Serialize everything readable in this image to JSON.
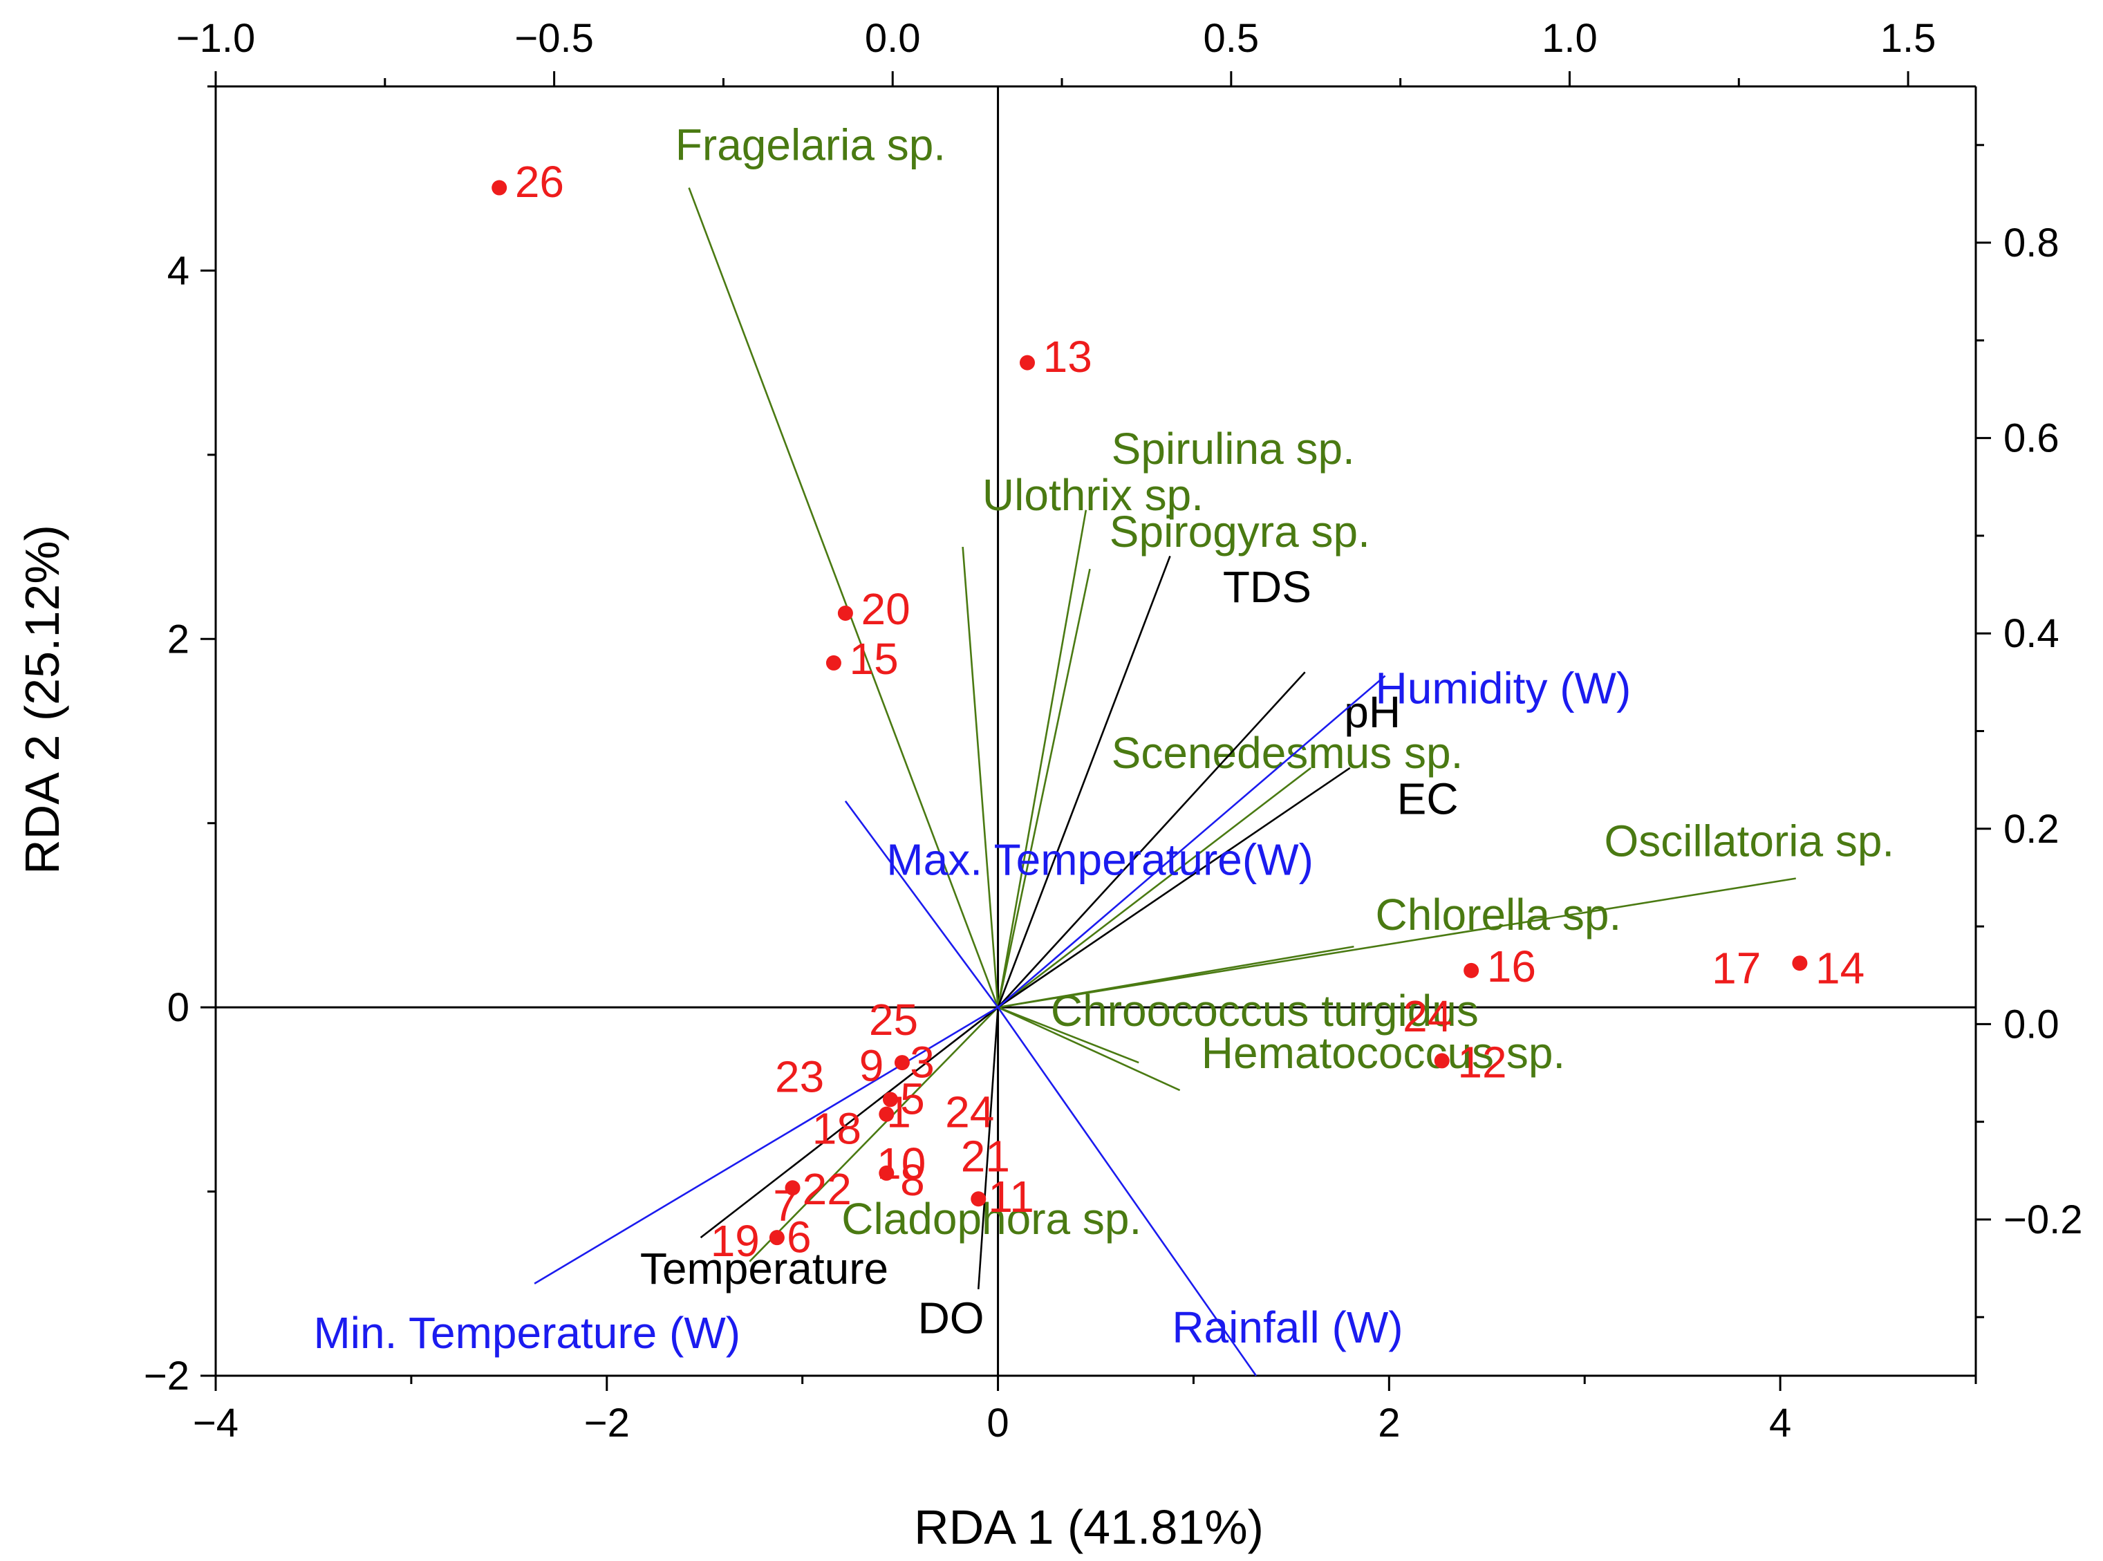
{
  "chart_data": {
    "type": "scatter",
    "subtype": "rda-triplot",
    "xlabel": "RDA 1 (41.81%)",
    "ylabel": "RDA 2 (25.12%)",
    "xlim": [
      -4,
      5
    ],
    "ylim": [
      -2,
      5
    ],
    "xticks": [
      -4,
      -2,
      0,
      2,
      4
    ],
    "yticks": [
      -2,
      0,
      2,
      4
    ],
    "xtick_labels": [
      "−4",
      "−2",
      "0",
      "2",
      "4"
    ],
    "ytick_labels": [
      "−2",
      "0",
      "2",
      "4"
    ],
    "top_axis": {
      "lim": [
        -1.0,
        1.6
      ],
      "ticks": [
        -1.0,
        -0.5,
        0.0,
        0.5,
        1.0,
        1.5
      ],
      "tick_labels": [
        "−1.0",
        "−0.5",
        "0.0",
        "0.5",
        "1.0",
        "1.5"
      ]
    },
    "right_axis": {
      "lim": [
        -0.36,
        0.96
      ],
      "ticks": [
        -0.2,
        0.0,
        0.2,
        0.4,
        0.6,
        0.8
      ],
      "tick_labels": [
        "−0.2",
        "0.0",
        "0.2",
        "0.4",
        "0.6",
        "0.8"
      ]
    },
    "grid": false,
    "colors": {
      "species": "#4a7a12",
      "environment": "#000000",
      "weather": "#1b1bef",
      "sites": "#ee1c1c"
    },
    "vectors": [
      {
        "name": "Fragelaria sp.",
        "group": "species",
        "x": -1.58,
        "y": 4.45,
        "lx": -1.65,
        "ly": 4.6
      },
      {
        "name": "Spirulina sp.",
        "group": "species",
        "x": 0.45,
        "y": 2.7,
        "lx": 0.58,
        "ly": 2.95
      },
      {
        "name": "Ulothrix sp.",
        "group": "species",
        "x": -0.18,
        "y": 2.5,
        "lx": -0.08,
        "ly": 2.7
      },
      {
        "name": "Spirogyra sp.",
        "group": "species",
        "x": 0.47,
        "y": 2.38,
        "lx": 0.57,
        "ly": 2.5
      },
      {
        "name": "Scenedesmus sp.",
        "group": "species",
        "x": 1.6,
        "y": 1.3,
        "lx": 0.58,
        "ly": 1.3
      },
      {
        "name": "Oscillatoria sp.",
        "group": "species",
        "x": 4.08,
        "y": 0.7,
        "lx": 3.1,
        "ly": 0.82
      },
      {
        "name": "Chlorella sp.",
        "group": "species",
        "x": 1.82,
        "y": 0.33,
        "lx": 1.93,
        "ly": 0.42
      },
      {
        "name": "Chroococcus turgidus",
        "group": "species",
        "x": 0.72,
        "y": -0.3,
        "lx": 0.27,
        "ly": -0.1
      },
      {
        "name": "Hematococcus sp.",
        "group": "species",
        "x": 0.93,
        "y": -0.45,
        "lx": 1.04,
        "ly": -0.33
      },
      {
        "name": "Cladophora sp.",
        "group": "species",
        "x": -1.27,
        "y": -1.38,
        "lx": -0.8,
        "ly": -1.23
      },
      {
        "name": "TDS",
        "group": "environment",
        "x": 0.88,
        "y": 2.45,
        "lx": 1.15,
        "ly": 2.2
      },
      {
        "name": "pH",
        "group": "environment",
        "x": 1.57,
        "y": 1.82,
        "lx": 1.77,
        "ly": 1.52
      },
      {
        "name": "EC",
        "group": "environment",
        "x": 1.8,
        "y": 1.3,
        "lx": 2.04,
        "ly": 1.05
      },
      {
        "name": "Temperature",
        "group": "environment",
        "x": -1.52,
        "y": -1.25,
        "lx": -1.83,
        "ly": -1.5
      },
      {
        "name": "DO",
        "group": "environment",
        "x": -0.1,
        "y": -1.53,
        "lx": -0.41,
        "ly": -1.77
      },
      {
        "name": "Humidity (W)",
        "group": "weather",
        "x": 1.98,
        "y": 1.8,
        "lx": 1.93,
        "ly": 1.65
      },
      {
        "name": "Max. Temperature(W)",
        "group": "weather",
        "x": -0.78,
        "y": 1.12,
        "lx": -0.57,
        "ly": 0.72
      },
      {
        "name": "Min. Temperature (W)",
        "group": "weather",
        "x": -2.37,
        "y": -1.5,
        "lx": -3.5,
        "ly": -1.85
      },
      {
        "name": "Rainfall (W)",
        "group": "weather",
        "x": 1.32,
        "y": -2.0,
        "lx": 0.89,
        "ly": -1.82
      }
    ],
    "sites": [
      {
        "label": "26",
        "x": -2.55,
        "y": 4.45,
        "lx": -2.47,
        "ly": 4.4,
        "dot": true
      },
      {
        "label": "13",
        "x": 0.15,
        "y": 3.5,
        "lx": 0.23,
        "ly": 3.45,
        "dot": true
      },
      {
        "label": "20",
        "x": -0.78,
        "y": 2.14,
        "lx": -0.7,
        "ly": 2.08,
        "dot": true
      },
      {
        "label": "15",
        "x": -0.84,
        "y": 1.87,
        "lx": -0.76,
        "ly": 1.81,
        "dot": true
      },
      {
        "label": "16",
        "x": 2.42,
        "y": 0.2,
        "lx": 2.5,
        "ly": 0.14,
        "dot": true
      },
      {
        "label": "17",
        "x": 3.65,
        "y": 0.17,
        "lx": 3.65,
        "ly": 0.13,
        "dot": false
      },
      {
        "label": "14",
        "x": 4.1,
        "y": 0.24,
        "lx": 4.18,
        "ly": 0.13,
        "dot": true
      },
      {
        "label": "24",
        "x": 2.07,
        "y": -0.03,
        "lx": 2.07,
        "ly": -0.13,
        "dot": false
      },
      {
        "label": "12",
        "x": 2.27,
        "y": -0.29,
        "lx": 2.35,
        "ly": -0.38,
        "dot": true
      },
      {
        "label": "25",
        "x": -0.66,
        "y": -0.07,
        "lx": -0.66,
        "ly": -0.15,
        "dot": false
      },
      {
        "label": "9",
        "x": -0.71,
        "y": -0.33,
        "lx": -0.71,
        "ly": -0.4,
        "dot": false
      },
      {
        "label": "23",
        "x": -1.14,
        "y": -0.39,
        "lx": -1.14,
        "ly": -0.46,
        "dot": false
      },
      {
        "label": "3",
        "x": -0.49,
        "y": -0.3,
        "lx": -0.45,
        "ly": -0.38,
        "dot": true
      },
      {
        "label": "5",
        "x": -0.55,
        "y": -0.5,
        "lx": -0.5,
        "ly": -0.58,
        "dot": true
      },
      {
        "label": "1",
        "x": -0.57,
        "y": -0.58,
        "lx": -0.57,
        "ly": -0.65,
        "dot": true
      },
      {
        "label": "24",
        "x": -0.27,
        "y": -0.58,
        "lx": -0.27,
        "ly": -0.65,
        "dot": false
      },
      {
        "label": "18",
        "x": -0.95,
        "y": -0.67,
        "lx": -0.95,
        "ly": -0.74,
        "dot": false
      },
      {
        "label": "21",
        "x": -0.19,
        "y": -0.8,
        "lx": -0.19,
        "ly": -0.89,
        "dot": false
      },
      {
        "label": "10",
        "x": -0.58,
        "y": -0.84,
        "lx": -0.62,
        "ly": -0.93,
        "dot": false
      },
      {
        "label": "8",
        "x": -0.57,
        "y": -0.9,
        "lx": -0.5,
        "ly": -1.02,
        "dot": true
      },
      {
        "label": "22",
        "x": -1.05,
        "y": -0.98,
        "lx": -1.0,
        "ly": -1.07,
        "dot": true
      },
      {
        "label": "7",
        "x": -1.08,
        "y": -1.06,
        "lx": -1.15,
        "ly": -1.16,
        "dot": false
      },
      {
        "label": "11",
        "x": -0.1,
        "y": -1.04,
        "lx": -0.05,
        "ly": -1.11,
        "dot": true
      },
      {
        "label": "19",
        "x": -1.33,
        "y": -1.27,
        "lx": -1.47,
        "ly": -1.35,
        "dot": false
      },
      {
        "label": "6",
        "x": -1.13,
        "y": -1.25,
        "lx": -1.08,
        "ly": -1.33,
        "dot": true
      }
    ]
  }
}
